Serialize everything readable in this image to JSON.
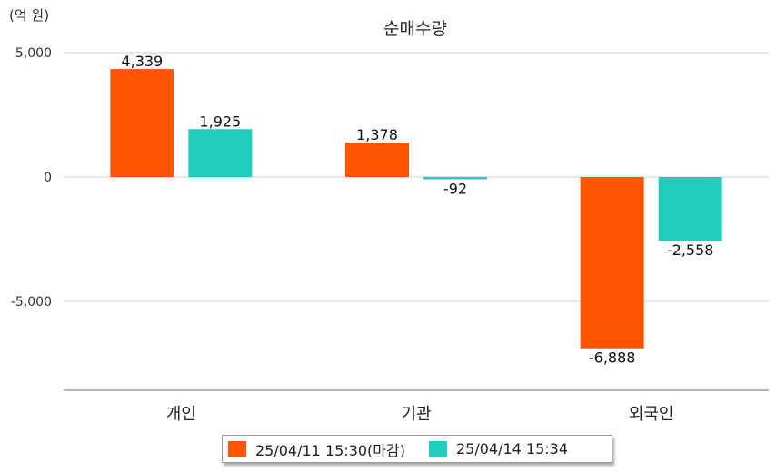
{
  "unit_label": "(억 원)",
  "chart_data": {
    "type": "bar",
    "title": "순매수량",
    "categories": [
      "개인",
      "기관",
      "외국인"
    ],
    "series": [
      {
        "name": "25/04/11 15:30(마감)",
        "color": "#ff5500",
        "values": [
          4339,
          1378,
          -6888
        ],
        "labels": [
          "4,339",
          "1,378",
          "-6,888"
        ]
      },
      {
        "name": "25/04/14 15:34",
        "color": "#1ecdbd",
        "values": [
          1925,
          -92,
          -2558
        ],
        "labels": [
          "1,925",
          "-92",
          "-2,558"
        ]
      }
    ],
    "yticks": [
      5000,
      0,
      -5000
    ],
    "ytick_labels": [
      "5,000",
      "0",
      "-5,000"
    ],
    "ylim": [
      -8500,
      5000
    ],
    "grid": true,
    "legend_position": "bottom"
  }
}
